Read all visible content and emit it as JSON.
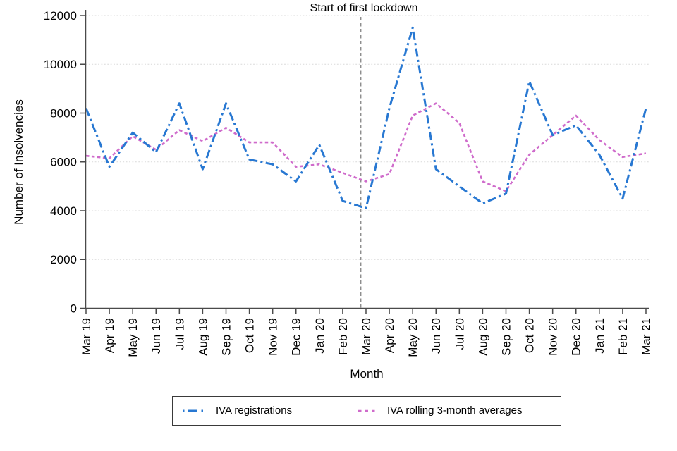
{
  "annotation": {
    "lockdown_label": "Start of first lockdown"
  },
  "colors": {
    "registrations_blue": "#2878d2",
    "rolling_avg_pink": "#cf6bcb",
    "vline_gray": "#8c8c8c",
    "gridline_gray": "#d9d9d9",
    "axis_gray": "#4a4a4a"
  },
  "legend": {
    "items": [
      {
        "label": "IVA registrations",
        "style": "dash-dot"
      },
      {
        "label": "IVA rolling 3-month averages",
        "style": "dotted"
      }
    ]
  },
  "chart_data": {
    "type": "line",
    "title": "",
    "xlabel": "Month",
    "ylabel": "Number of Insolvencies",
    "ylim": [
      0,
      12000
    ],
    "yticks": [
      0,
      2000,
      4000,
      6000,
      8000,
      10000,
      12000
    ],
    "grid": "horizontal-dotted",
    "legend_position": "bottom",
    "categories": [
      "Mar 19",
      "Apr 19",
      "May 19",
      "Jun 19",
      "Jul 19",
      "Aug 19",
      "Sep 19",
      "Oct 19",
      "Nov 19",
      "Dec 19",
      "Jan 20",
      "Feb 20",
      "Mar 20",
      "Apr 20",
      "May 20",
      "Jun 20",
      "Jul 20",
      "Aug 20",
      "Sep 20",
      "Oct 20",
      "Nov 20",
      "Dec 20",
      "Jan 21",
      "Feb 21",
      "Mar 21"
    ],
    "series": [
      {
        "name": "IVA registrations",
        "color": "#2878d2",
        "dash": "dash-dot",
        "values": [
          8200,
          5800,
          7200,
          6400,
          8400,
          5700,
          8400,
          6100,
          5900,
          5200,
          6700,
          4400,
          4100,
          8200,
          11500,
          5700,
          5000,
          4300,
          4700,
          9300,
          7100,
          7500,
          6300,
          4500,
          8200
        ]
      },
      {
        "name": "IVA rolling 3-month averages",
        "color": "#cf6bcb",
        "dash": "dotted",
        "values": [
          6250,
          6150,
          7050,
          6500,
          7300,
          6850,
          7400,
          6800,
          6800,
          5800,
          5900,
          5550,
          5200,
          5500,
          7900,
          8400,
          7600,
          5200,
          4800,
          6300,
          7100,
          7900,
          6900,
          6200,
          6350
        ]
      }
    ],
    "vline": {
      "label": "Start of first lockdown",
      "position_index": 11.78,
      "style": "dashed",
      "color": "#8c8c8c"
    }
  }
}
